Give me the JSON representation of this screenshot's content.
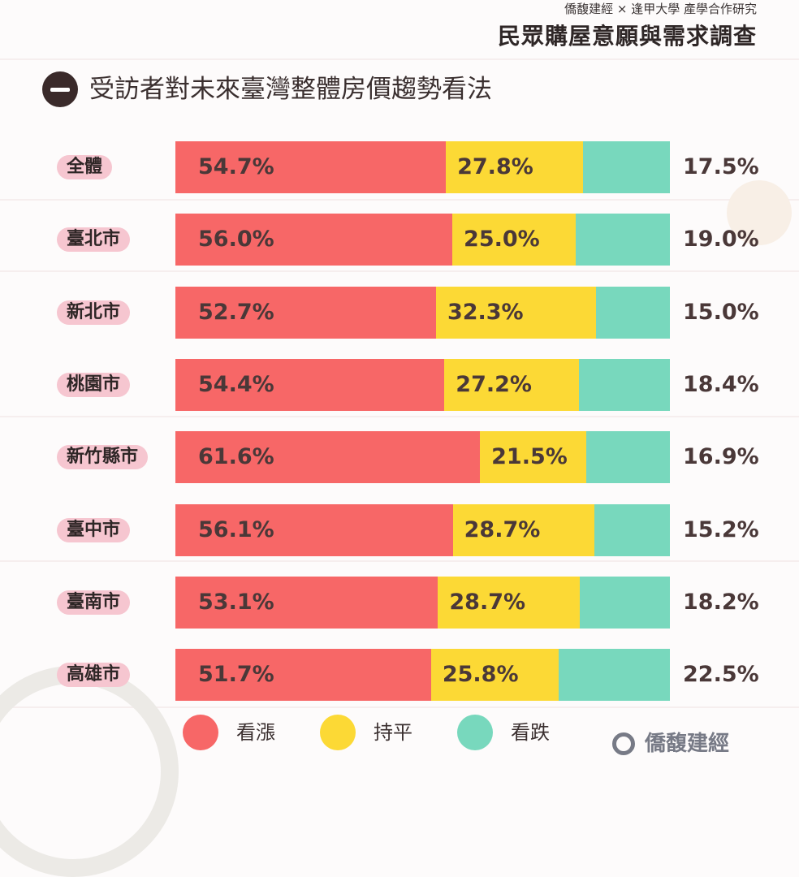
{
  "header": {
    "top": "僑馥建經 × 逢甲大學 產學合作研究",
    "title": "民眾購屋意願與需求調查",
    "section_title": "受訪者對未來臺灣整體房價趨勢看法"
  },
  "colors": {
    "up": "#f76767",
    "flat": "#fcd935",
    "down": "#78d8bd",
    "label_bg": "#f6c6d0"
  },
  "chart_data": {
    "type": "bar",
    "stacked": true,
    "orientation": "horizontal",
    "xlim": [
      0,
      100
    ],
    "categories": [
      "全體",
      "臺北市",
      "新北市",
      "桃園市",
      "新竹縣市",
      "臺中市",
      "臺南市",
      "高雄市"
    ],
    "series": [
      {
        "name": "看漲",
        "values": [
          54.7,
          56.0,
          52.7,
          54.4,
          61.6,
          56.1,
          53.1,
          51.7
        ],
        "labels": [
          "54.7%",
          "56.0%",
          "52.7%",
          "54.4%",
          "61.6%",
          "56.1%",
          "53.1%",
          "51.7%"
        ]
      },
      {
        "name": "持平",
        "values": [
          27.8,
          25.0,
          32.3,
          27.2,
          21.5,
          28.7,
          28.7,
          25.8
        ],
        "labels": [
          "27.8%",
          "25.0%",
          "32.3%",
          "27.2%",
          "21.5%",
          "28.7%",
          "28.7%",
          "25.8%"
        ]
      },
      {
        "name": "看跌",
        "values": [
          17.5,
          19.0,
          15.0,
          18.4,
          16.9,
          15.2,
          18.2,
          22.5
        ],
        "labels": [
          "17.5%",
          "19.0%",
          "15.0%",
          "18.4%",
          "16.9%",
          "15.2%",
          "18.2%",
          "22.5%"
        ]
      }
    ],
    "legend": "bottom"
  },
  "logo": {
    "text": "僑馥建經",
    "icon": "company-logo-icon"
  }
}
